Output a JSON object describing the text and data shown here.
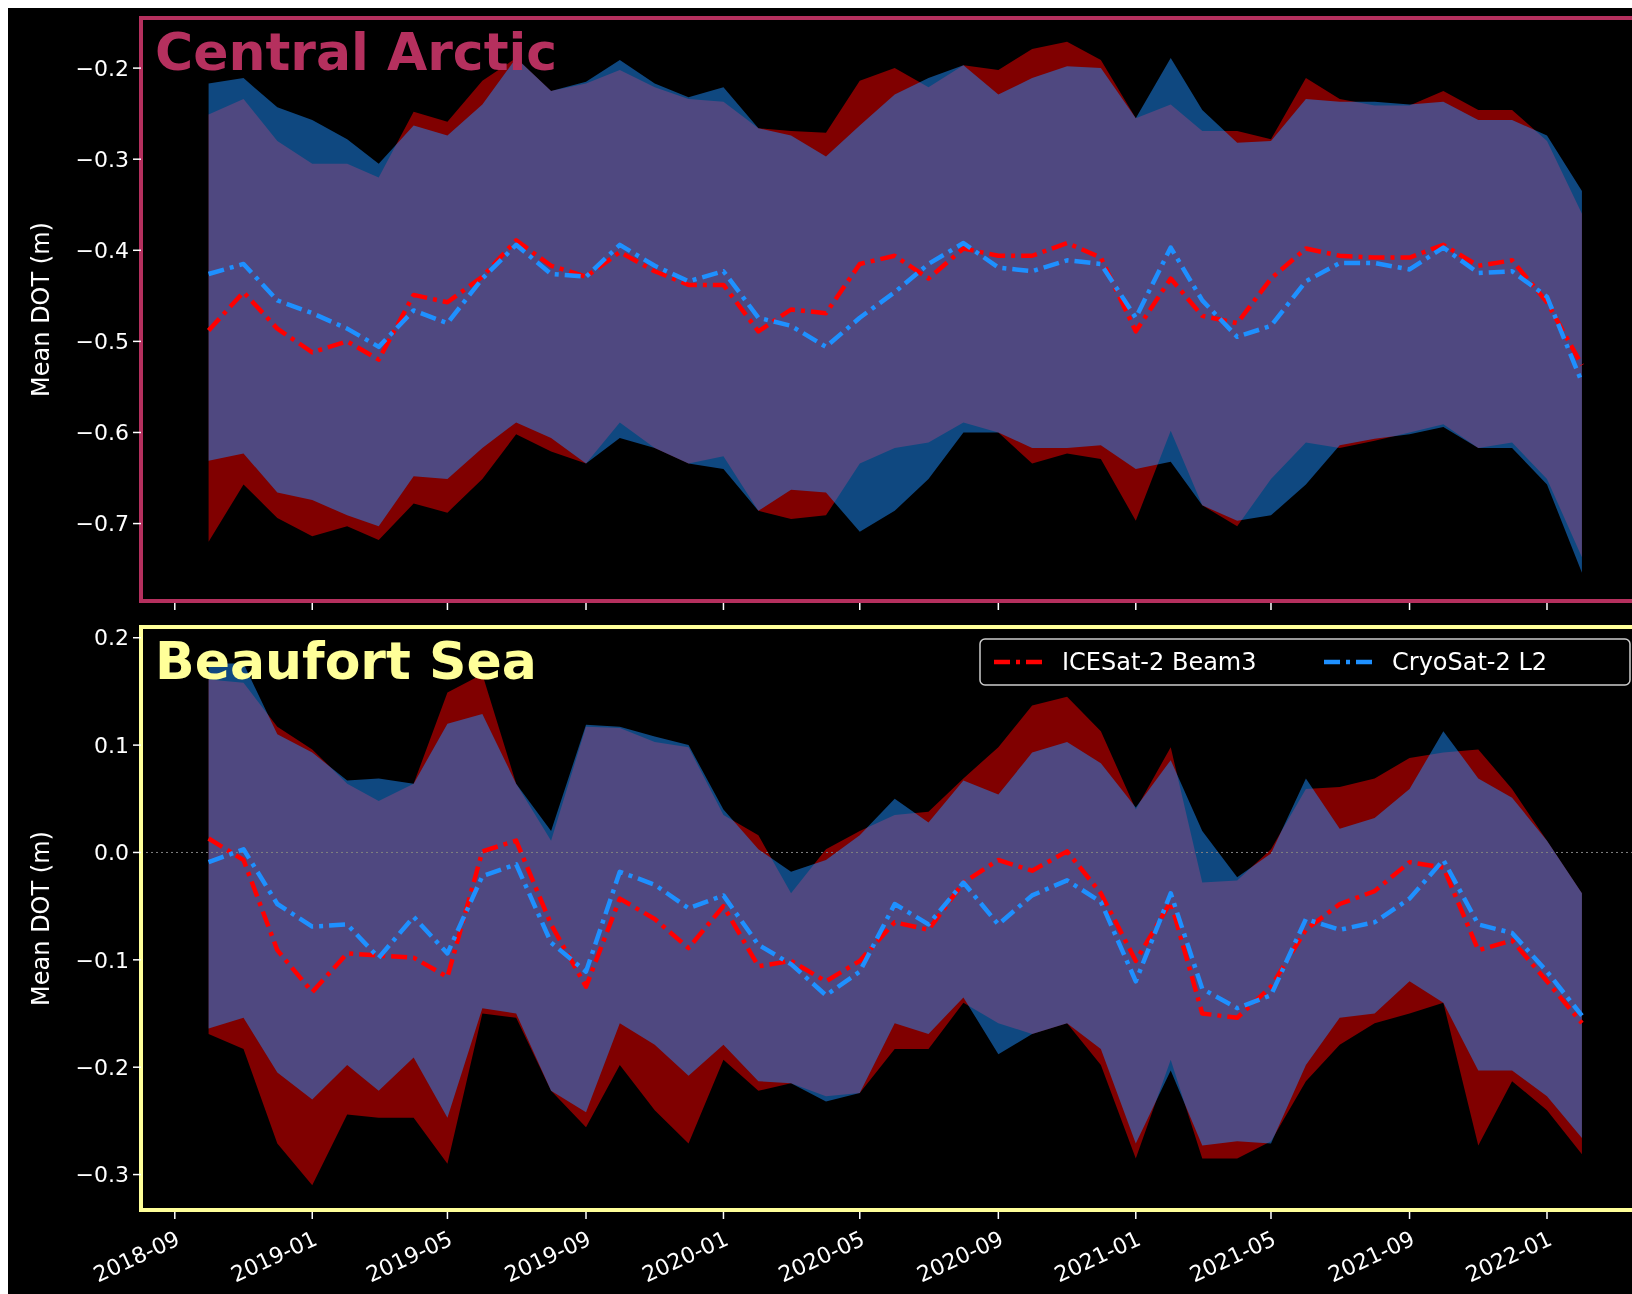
{
  "chart_data": [
    {
      "type": "line",
      "title": "Central Arctic",
      "ylabel": "Mean DOT (m)",
      "xlim": [
        "2018-08-02",
        "2022-03-21"
      ],
      "ylim": [
        -0.785,
        -0.145
      ],
      "yticks": [
        {
          "value": -0.7,
          "label": "−0.7"
        },
        {
          "value": -0.6,
          "label": "−0.6"
        },
        {
          "value": -0.5,
          "label": "−0.5"
        },
        {
          "value": -0.4,
          "label": "−0.4"
        },
        {
          "value": -0.3,
          "label": "−0.3"
        },
        {
          "value": -0.2,
          "label": "−0.2"
        }
      ],
      "xticks": [
        "2018-09",
        "2019-01",
        "2019-05",
        "2019-09",
        "2020-01",
        "2020-05",
        "2020-09",
        "2021-01",
        "2021-05",
        "2021-09",
        "2022-01"
      ],
      "tick_labels": "y",
      "legend": false,
      "line_style": "dashed",
      "grid": false,
      "x": [
        "2018-10",
        "2018-11",
        "2018-12",
        "2019-01",
        "2019-02",
        "2019-03",
        "2019-04",
        "2019-05",
        "2019-06",
        "2019-07",
        "2019-08",
        "2019-09",
        "2019-10",
        "2019-11",
        "2019-12",
        "2020-01",
        "2020-02",
        "2020-03",
        "2020-04",
        "2020-05",
        "2020-06",
        "2020-07",
        "2020-08",
        "2020-09",
        "2020-10",
        "2020-11",
        "2020-12",
        "2021-01",
        "2021-02",
        "2021-03",
        "2021-04",
        "2021-05",
        "2021-06",
        "2021-07",
        "2021-08",
        "2021-09",
        "2021-10",
        "2021-11",
        "2021-12",
        "2022-01",
        "2022-02"
      ],
      "series": [
        {
          "color": "#ff0000",
          "values": [
            -0.488,
            -0.446,
            -0.486,
            -0.512,
            -0.5,
            -0.52,
            -0.449,
            -0.457,
            -0.429,
            -0.389,
            -0.417,
            -0.429,
            -0.402,
            -0.423,
            -0.438,
            -0.438,
            -0.489,
            -0.465,
            -0.469,
            -0.415,
            -0.406,
            -0.431,
            -0.398,
            -0.406,
            -0.406,
            -0.392,
            -0.408,
            -0.489,
            -0.431,
            -0.472,
            -0.48,
            -0.431,
            -0.398,
            -0.406,
            -0.408,
            -0.408,
            -0.394,
            -0.417,
            -0.411,
            -0.457,
            -0.526
          ],
          "upper": [
            -0.251,
            -0.234,
            -0.28,
            -0.305,
            -0.305,
            -0.32,
            -0.248,
            -0.259,
            -0.214,
            -0.189,
            -0.225,
            -0.217,
            -0.202,
            -0.221,
            -0.234,
            -0.237,
            -0.266,
            -0.269,
            -0.271,
            -0.214,
            -0.2,
            -0.221,
            -0.197,
            -0.202,
            -0.179,
            -0.171,
            -0.191,
            -0.255,
            -0.24,
            -0.269,
            -0.269,
            -0.278,
            -0.211,
            -0.234,
            -0.241,
            -0.241,
            -0.225,
            -0.246,
            -0.246,
            -0.28,
            -0.36
          ],
          "lower": [
            -0.72,
            -0.657,
            -0.694,
            -0.714,
            -0.703,
            -0.718,
            -0.678,
            -0.688,
            -0.651,
            -0.602,
            -0.621,
            -0.634,
            -0.589,
            -0.617,
            -0.634,
            -0.626,
            -0.686,
            -0.695,
            -0.691,
            -0.634,
            -0.617,
            -0.611,
            -0.589,
            -0.6,
            -0.634,
            -0.623,
            -0.629,
            -0.697,
            -0.598,
            -0.68,
            -0.703,
            -0.651,
            -0.611,
            -0.617,
            -0.609,
            -0.6,
            -0.591,
            -0.617,
            -0.611,
            -0.651,
            -0.737
          ]
        },
        {
          "color": "#1e90ff",
          "values": [
            -0.426,
            -0.415,
            -0.455,
            -0.469,
            -0.486,
            -0.506,
            -0.466,
            -0.48,
            -0.431,
            -0.394,
            -0.426,
            -0.429,
            -0.394,
            -0.417,
            -0.434,
            -0.423,
            -0.474,
            -0.483,
            -0.506,
            -0.474,
            -0.446,
            -0.415,
            -0.392,
            -0.419,
            -0.423,
            -0.411,
            -0.415,
            -0.474,
            -0.397,
            -0.455,
            -0.495,
            -0.483,
            -0.434,
            -0.414,
            -0.414,
            -0.421,
            -0.397,
            -0.425,
            -0.423,
            -0.451,
            -0.545
          ],
          "upper": [
            -0.217,
            -0.211,
            -0.243,
            -0.257,
            -0.278,
            -0.305,
            -0.263,
            -0.274,
            -0.24,
            -0.189,
            -0.225,
            -0.215,
            -0.191,
            -0.217,
            -0.232,
            -0.221,
            -0.266,
            -0.274,
            -0.297,
            -0.263,
            -0.229,
            -0.211,
            -0.197,
            -0.229,
            -0.211,
            -0.198,
            -0.2,
            -0.255,
            -0.189,
            -0.246,
            -0.282,
            -0.28,
            -0.234,
            -0.237,
            -0.237,
            -0.24,
            -0.237,
            -0.257,
            -0.257,
            -0.274,
            -0.335
          ],
          "lower": [
            -0.631,
            -0.623,
            -0.666,
            -0.674,
            -0.691,
            -0.703,
            -0.648,
            -0.651,
            -0.617,
            -0.589,
            -0.606,
            -0.634,
            -0.606,
            -0.617,
            -0.634,
            -0.64,
            -0.686,
            -0.663,
            -0.666,
            -0.709,
            -0.686,
            -0.651,
            -0.6,
            -0.6,
            -0.617,
            -0.617,
            -0.614,
            -0.64,
            -0.632,
            -0.68,
            -0.697,
            -0.691,
            -0.657,
            -0.614,
            -0.607,
            -0.602,
            -0.594,
            -0.617,
            -0.617,
            -0.657,
            -0.754
          ]
        }
      ]
    },
    {
      "type": "line",
      "title": "Beaufort Sea",
      "ylabel": "Mean DOT (m)",
      "xlim": [
        "2018-08-02",
        "2022-03-21"
      ],
      "ylim": [
        -0.333,
        0.21
      ],
      "yticks": [
        {
          "value": -0.3,
          "label": "−0.3"
        },
        {
          "value": -0.2,
          "label": "−0.2"
        },
        {
          "value": -0.1,
          "label": "−0.1"
        },
        {
          "value": 0,
          "label": "0.0"
        },
        {
          "value": 0.1,
          "label": "0.1"
        },
        {
          "value": 0.2,
          "label": "0.2"
        }
      ],
      "xticks": [
        "2018-09",
        "2019-01",
        "2019-05",
        "2019-09",
        "2020-01",
        "2020-05",
        "2020-09",
        "2021-01",
        "2021-05",
        "2021-09",
        "2022-01"
      ],
      "legend": "top right",
      "line_style": "dashed",
      "grid": false,
      "ref_lines": [
        {
          "axis": "y",
          "value": 0,
          "color": "#808080",
          "line_style": "dotted"
        }
      ],
      "x": [
        "2018-10",
        "2018-11",
        "2018-12",
        "2019-01",
        "2019-02",
        "2019-03",
        "2019-04",
        "2019-05",
        "2019-06",
        "2019-07",
        "2019-08",
        "2019-09",
        "2019-10",
        "2019-11",
        "2019-12",
        "2020-01",
        "2020-02",
        "2020-03",
        "2020-04",
        "2020-05",
        "2020-06",
        "2020-07",
        "2020-08",
        "2020-09",
        "2020-10",
        "2020-11",
        "2020-12",
        "2021-01",
        "2021-02",
        "2021-03",
        "2021-04",
        "2021-05",
        "2021-06",
        "2021-07",
        "2021-08",
        "2021-09",
        "2021-10",
        "2021-11",
        "2021-12",
        "2022-01",
        "2022-02"
      ],
      "series": [
        {
          "name": "ICESat-2 Beam3",
          "color": "#ff0000",
          "values": [
            0.013,
            -0.007,
            -0.091,
            -0.13,
            -0.094,
            -0.096,
            -0.098,
            -0.116,
            0.001,
            0.011,
            -0.067,
            -0.125,
            -0.043,
            -0.062,
            -0.089,
            -0.05,
            -0.106,
            -0.101,
            -0.12,
            -0.101,
            -0.065,
            -0.072,
            -0.028,
            -0.007,
            -0.017,
            0.001,
            -0.038,
            -0.101,
            -0.046,
            -0.15,
            -0.154,
            -0.125,
            -0.072,
            -0.048,
            -0.036,
            -0.009,
            -0.014,
            -0.091,
            -0.082,
            -0.12,
            -0.159
          ],
          "upper": [
            0.161,
            0.158,
            0.117,
            0.096,
            0.064,
            0.048,
            0.064,
            0.149,
            0.166,
            0.064,
            0.011,
            0.117,
            0.116,
            0.103,
            0.098,
            0.035,
            0.016,
            -0.038,
            0.003,
            0.02,
            0.035,
            0.038,
            0.069,
            0.098,
            0.137,
            0.145,
            0.113,
            0.04,
            0.098,
            -0.028,
            -0.026,
            0.003,
            0.059,
            0.061,
            0.069,
            0.088,
            0.093,
            0.096,
            0.059,
            0.011,
            -0.038
          ],
          "lower": [
            -0.169,
            -0.183,
            -0.271,
            -0.31,
            -0.244,
            -0.247,
            -0.247,
            -0.29,
            -0.15,
            -0.154,
            -0.222,
            -0.256,
            -0.198,
            -0.24,
            -0.271,
            -0.193,
            -0.222,
            -0.215,
            -0.227,
            -0.224,
            -0.183,
            -0.183,
            -0.14,
            -0.159,
            -0.169,
            -0.159,
            -0.198,
            -0.285,
            -0.193,
            -0.285,
            -0.285,
            -0.269,
            -0.213,
            -0.179,
            -0.159,
            -0.15,
            -0.14,
            -0.273,
            -0.213,
            -0.24,
            -0.281
          ]
        },
        {
          "name": "CryoSat-2 L2",
          "color": "#1e90ff",
          "values": [
            -0.009,
            0.003,
            -0.048,
            -0.069,
            -0.067,
            -0.098,
            -0.06,
            -0.094,
            -0.022,
            -0.011,
            -0.084,
            -0.111,
            -0.018,
            -0.03,
            -0.052,
            -0.04,
            -0.086,
            -0.104,
            -0.133,
            -0.111,
            -0.048,
            -0.067,
            -0.028,
            -0.067,
            -0.04,
            -0.026,
            -0.046,
            -0.12,
            -0.038,
            -0.127,
            -0.145,
            -0.133,
            -0.062,
            -0.072,
            -0.065,
            -0.043,
            -0.007,
            -0.067,
            -0.075,
            -0.111,
            -0.152
          ],
          "upper": [
            0.176,
            0.176,
            0.11,
            0.093,
            0.067,
            0.069,
            0.064,
            0.12,
            0.129,
            0.064,
            0.02,
            0.119,
            0.117,
            0.108,
            0.1,
            0.04,
            0.003,
            -0.018,
            -0.007,
            0.016,
            0.05,
            0.028,
            0.067,
            0.054,
            0.093,
            0.103,
            0.083,
            0.042,
            0.086,
            0.02,
            -0.023,
            -0.001,
            0.069,
            0.022,
            0.032,
            0.059,
            0.113,
            0.069,
            0.051,
            0.011,
            -0.038
          ],
          "lower": [
            -0.164,
            -0.154,
            -0.205,
            -0.23,
            -0.198,
            -0.222,
            -0.191,
            -0.247,
            -0.145,
            -0.15,
            -0.222,
            -0.242,
            -0.159,
            -0.179,
            -0.208,
            -0.179,
            -0.213,
            -0.215,
            -0.232,
            -0.224,
            -0.159,
            -0.169,
            -0.135,
            -0.188,
            -0.169,
            -0.159,
            -0.183,
            -0.271,
            -0.203,
            -0.273,
            -0.269,
            -0.271,
            -0.198,
            -0.154,
            -0.15,
            -0.12,
            -0.14,
            -0.203,
            -0.203,
            -0.227,
            -0.266
          ]
        }
      ]
    }
  ]
}
